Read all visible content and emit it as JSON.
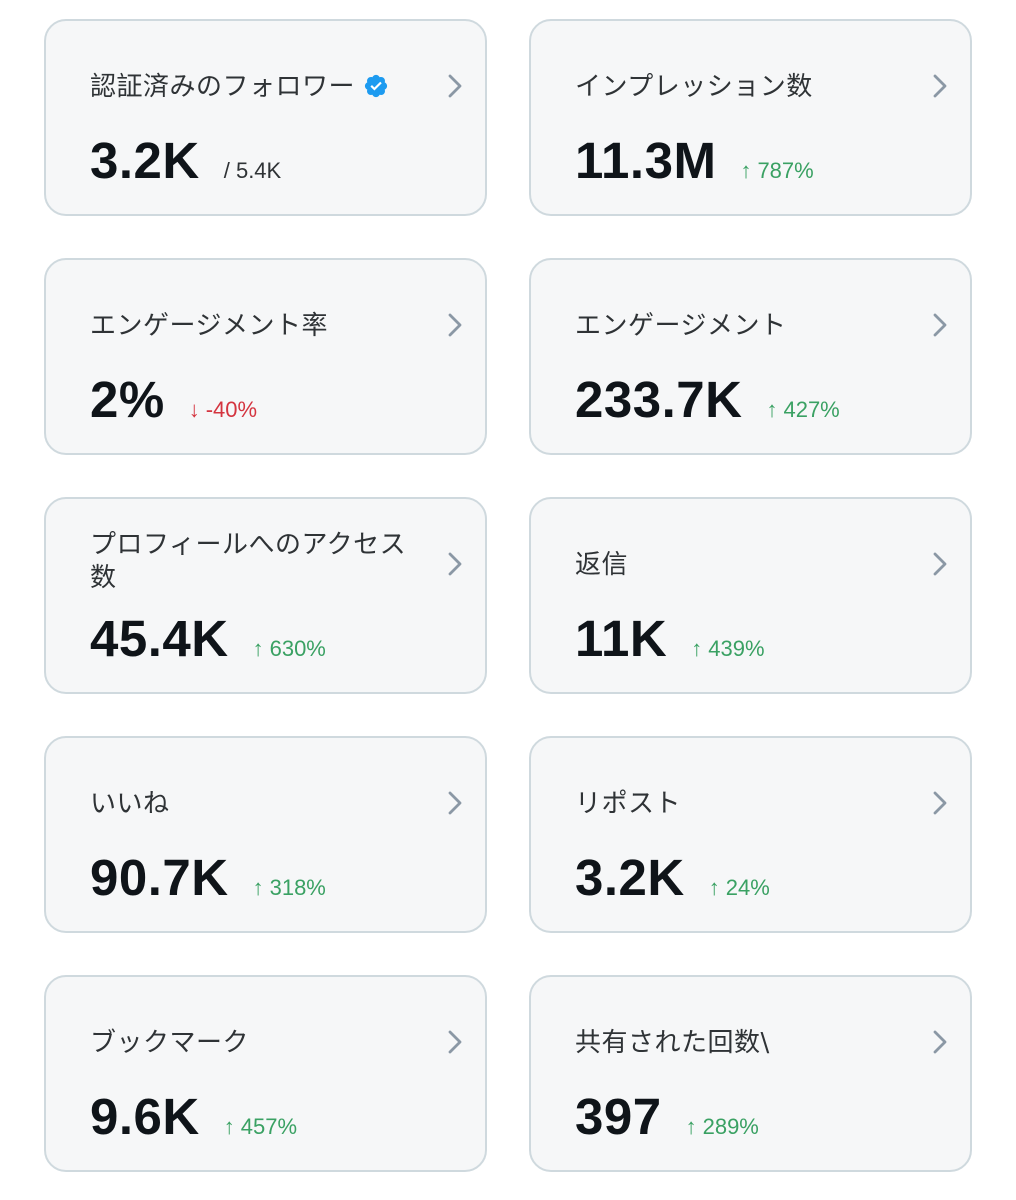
{
  "colors": {
    "card_bg": "#f6f7f8",
    "card_border": "#cfd9de",
    "text_primary": "#0f1419",
    "up": "#3aa163",
    "down": "#d4343f",
    "verified_blue": "#1d9bf0",
    "chevron": "#8b98a5"
  },
  "cards": [
    {
      "title": "認証済みのフォロワー",
      "value": "3.2K",
      "sub": "/ 5.4K",
      "icon": "verified-badge-icon"
    },
    {
      "title": "インプレッション数",
      "value": "11.3M",
      "arrow": "↑",
      "delta": "787%",
      "direction": "up"
    },
    {
      "title": "エンゲージメント率",
      "value": "2%",
      "arrow": "↓",
      "delta": "-40%",
      "direction": "down"
    },
    {
      "title": "エンゲージメント",
      "value": "233.7K",
      "arrow": "↑",
      "delta": "427%",
      "direction": "up"
    },
    {
      "title": "プロフィールへのアクセス数",
      "value": "45.4K",
      "arrow": "↑",
      "delta": "630%",
      "direction": "up"
    },
    {
      "title": "返信",
      "value": "11K",
      "arrow": "↑",
      "delta": "439%",
      "direction": "up"
    },
    {
      "title": "いいね",
      "value": "90.7K",
      "arrow": "↑",
      "delta": "318%",
      "direction": "up"
    },
    {
      "title": "リポスト",
      "value": "3.2K",
      "arrow": "↑",
      "delta": "24%",
      "direction": "up"
    },
    {
      "title": "ブックマーク",
      "value": "9.6K",
      "arrow": "↑",
      "delta": "457%",
      "direction": "up"
    },
    {
      "title": "共有された回数\\",
      "value": "397",
      "arrow": "↑",
      "delta": "289%",
      "direction": "up"
    }
  ]
}
